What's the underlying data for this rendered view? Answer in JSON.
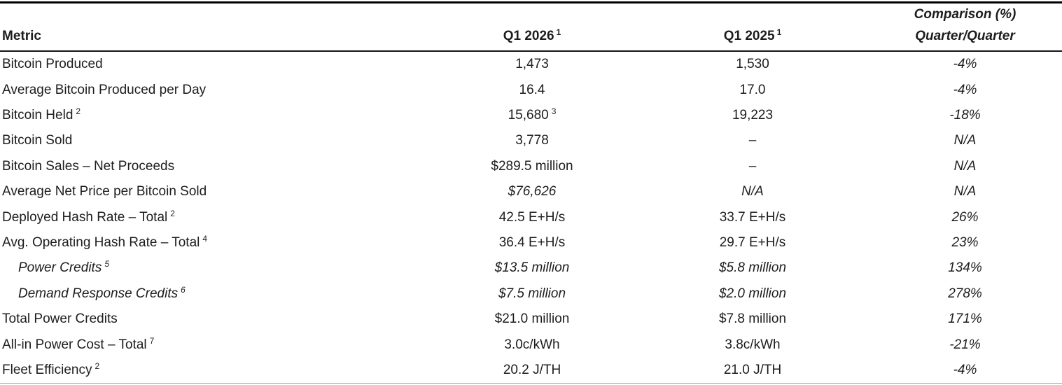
{
  "header": {
    "metric": "Metric",
    "q1_2026": "Q1 2026",
    "q1_2026_sup": "1",
    "q1_2025": "Q1 2025",
    "q1_2025_sup": "1",
    "comparison_line1": "Comparison (%)",
    "comparison_line2": "Quarter/Quarter"
  },
  "rows": [
    {
      "label": "Bitcoin Produced",
      "q1_2026": "1,473",
      "q1_2025": "1,530",
      "comparison": "-4%"
    },
    {
      "label": "Average Bitcoin Produced per Day",
      "q1_2026": "16.4",
      "q1_2025": "17.0",
      "comparison": "-4%"
    },
    {
      "label": "Bitcoin Held",
      "label_sup": "2",
      "q1_2026": "15,680",
      "q1_2026_sup": "3",
      "q1_2025": "19,223",
      "comparison": "-18%"
    },
    {
      "label": "Bitcoin Sold",
      "q1_2026": "3,778",
      "q1_2025": "–",
      "comparison": "N/A"
    },
    {
      "label": "Bitcoin Sales – Net Proceeds",
      "q1_2026": "$289.5 million",
      "q1_2025": "–",
      "comparison": "N/A"
    },
    {
      "label": "Average Net Price per Bitcoin Sold",
      "q1_2026": "$76,626",
      "q1_2025": "N/A",
      "comparison": "N/A"
    },
    {
      "label": "Deployed Hash Rate – Total",
      "label_sup": "2",
      "q1_2026": "42.5 E+H/s",
      "q1_2025": "33.7 E+H/s",
      "comparison": "26%"
    },
    {
      "label": "Avg. Operating Hash Rate – Total",
      "label_sup": "4",
      "q1_2026": "36.4 E+H/s",
      "q1_2025": "29.7 E+H/s",
      "comparison": "23%"
    },
    {
      "label": "Power Credits",
      "label_sup": "5",
      "q1_2026": "$13.5 million",
      "q1_2025": "$5.8 million",
      "comparison": "134%"
    },
    {
      "label": "Demand Response Credits",
      "label_sup": "6",
      "q1_2026": "$7.5 million",
      "q1_2025": "$2.0 million",
      "comparison": "278%"
    },
    {
      "label": "Total Power Credits",
      "q1_2026": "$21.0 million",
      "q1_2025": "$7.8 million",
      "comparison": "171%"
    },
    {
      "label": "All-in Power Cost – Total",
      "label_sup": "7",
      "q1_2026": "3.0c/kWh",
      "q1_2025": "3.8c/kWh",
      "comparison": "-21%"
    },
    {
      "label": "Fleet Efficiency",
      "label_sup": "2",
      "q1_2026": "20.2 J/TH",
      "q1_2025": "21.0 J/TH",
      "comparison": "-4%"
    }
  ],
  "colors": {
    "text": "#1d1d1d",
    "top_rule": "#000000",
    "header_rule": "#141414",
    "bottom_rule": "#a8a8a8",
    "background": "#ffffff"
  }
}
